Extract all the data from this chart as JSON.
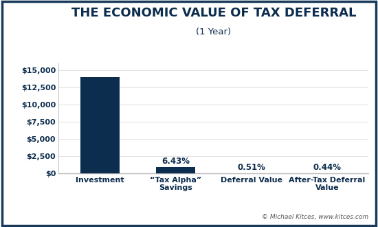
{
  "title": "THE ECONOMIC VALUE OF TAX DEFERRAL",
  "subtitle": "(1 Year)",
  "categories": [
    "Investment",
    "“Tax Alpha”\nSavings",
    "Deferral Value",
    "After-Tax Deferral\nValue"
  ],
  "values": [
    14000,
    900,
    71.4,
    61.6
  ],
  "bar_labels": [
    "",
    "6.43%",
    "0.51%",
    "0.44%"
  ],
  "bar_color": "#0d2d4e",
  "background_color": "#ffffff",
  "outer_border_color": "#1a3a5c",
  "ylim": [
    0,
    16000
  ],
  "yticks": [
    0,
    2500,
    5000,
    7500,
    10000,
    12500,
    15000
  ],
  "ytick_labels": [
    "$0",
    "$2,500",
    "$5,000",
    "$7,500",
    "$10,000",
    "$12,500",
    "$15,000"
  ],
  "title_color": "#0d2d4e",
  "label_color": "#0d2d4e",
  "footer_text": "© Michael Kitces, www.kitces.com",
  "title_fontsize": 13,
  "subtitle_fontsize": 9.5,
  "tick_label_fontsize": 8,
  "bar_label_fontsize": 8.5,
  "xlabel_fontsize": 8,
  "footer_fontsize": 6.5
}
